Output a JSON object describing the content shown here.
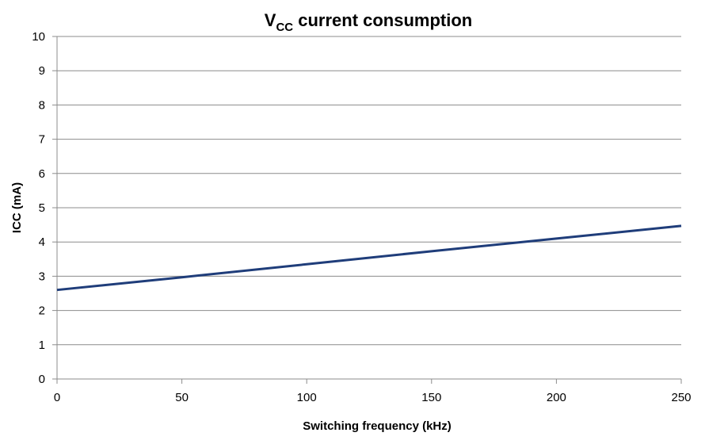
{
  "chart_data": {
    "type": "line",
    "title": {
      "main": "V",
      "subscript": "CC",
      "rest": " current consumption"
    },
    "xlabel": "Switching frequency (kHz)",
    "ylabel": "ICC (mA)",
    "xlim": [
      0,
      250
    ],
    "ylim": [
      0,
      10
    ],
    "x_ticks": [
      0,
      50,
      100,
      150,
      200,
      250
    ],
    "y_ticks": [
      0,
      1,
      2,
      3,
      4,
      5,
      6,
      7,
      8,
      9,
      10
    ],
    "grid": true,
    "series": [
      {
        "name": "ICC",
        "color": "#1f3d7a",
        "x": [
          0,
          50,
          100,
          150,
          200,
          250
        ],
        "y": [
          2.6,
          2.97,
          3.35,
          3.73,
          4.1,
          4.47
        ]
      }
    ]
  }
}
